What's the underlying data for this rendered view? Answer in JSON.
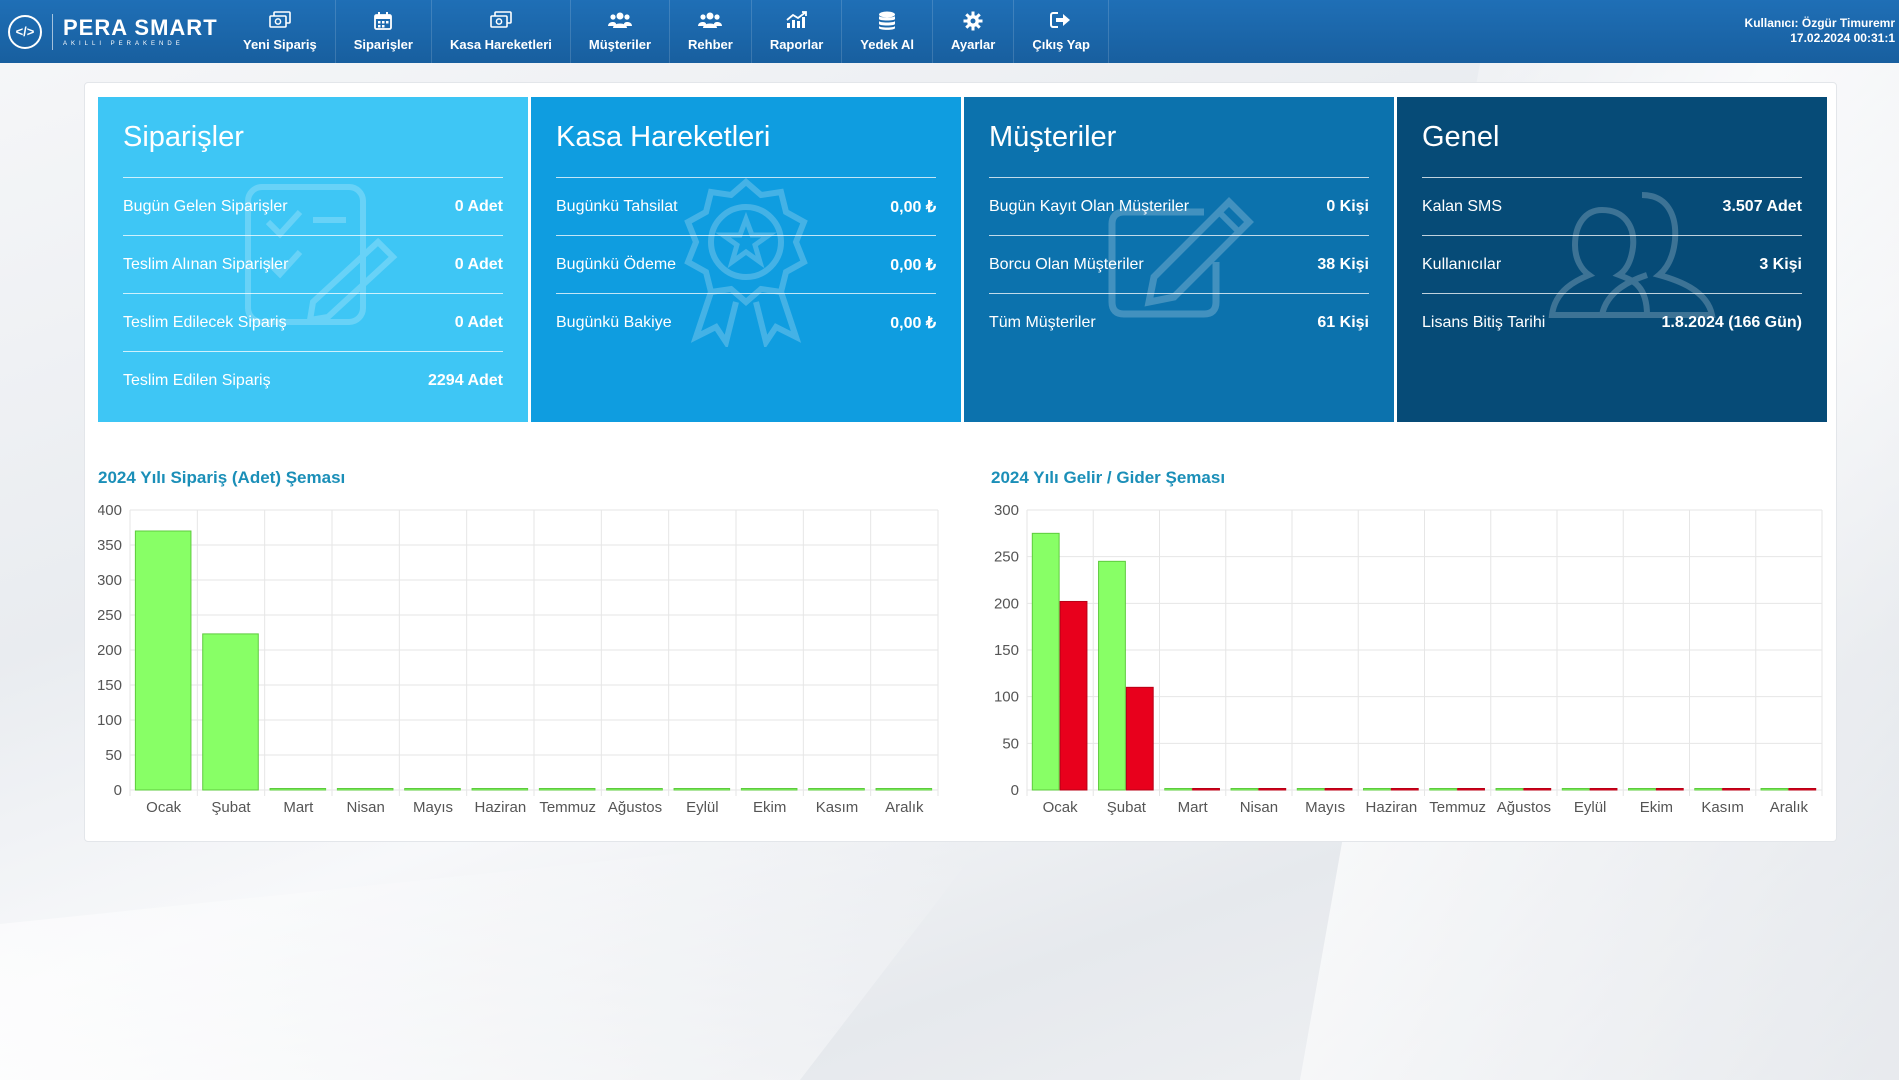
{
  "brand": {
    "logo": "</>",
    "name": "PERA SMART",
    "subtitle": "AKILLI PERAKENDE"
  },
  "nav": [
    {
      "label": "Yeni Sipariş",
      "icon": "money-icon"
    },
    {
      "label": "Siparişler",
      "icon": "calendar-icon"
    },
    {
      "label": "Kasa Hareketleri",
      "icon": "money-icon"
    },
    {
      "label": "Müşteriler",
      "icon": "users-icon"
    },
    {
      "label": "Rehber",
      "icon": "users-icon"
    },
    {
      "label": "Raporlar",
      "icon": "chart-icon"
    },
    {
      "label": "Yedek Al",
      "icon": "database-icon"
    },
    {
      "label": "Ayarlar",
      "icon": "gear-icon"
    },
    {
      "label": "Çıkış Yap",
      "icon": "sign-out-icon"
    }
  ],
  "user": {
    "line1": "Kullanıcı: Özgür Timuremr",
    "line2": "17.02.2024 00:31:1"
  },
  "cards": [
    {
      "title": "Siparişler",
      "color": "#3ec6f5",
      "icon": "checklist-icon",
      "rows": [
        {
          "label": "Bugün Gelen Siparişler",
          "value": "0 Adet"
        },
        {
          "label": "Teslim Alınan Siparişler",
          "value": "0 Adet"
        },
        {
          "label": "Teslim Edilecek Sipariş",
          "value": "0 Adet"
        },
        {
          "label": "Teslim Edilen Sipariş",
          "value": "2294 Adet"
        }
      ]
    },
    {
      "title": "Kasa Hareketleri",
      "color": "#0f9de0",
      "icon": "award-icon",
      "rows": [
        {
          "label": "Bugünkü Tahsilat",
          "value": "0,00 ₺"
        },
        {
          "label": "Bugünkü Ödeme",
          "value": "0,00 ₺"
        },
        {
          "label": "Bugünkü Bakiye",
          "value": "0,00 ₺"
        }
      ]
    },
    {
      "title": "Müşteriler",
      "color": "#0c72ad",
      "icon": "edit-icon",
      "rows": [
        {
          "label": "Bugün Kayıt Olan Müşteriler",
          "value": "0 Kişi"
        },
        {
          "label": "Borcu Olan Müşteriler",
          "value": "38 Kişi"
        },
        {
          "label": "Tüm Müşteriler",
          "value": "61 Kişi"
        }
      ]
    },
    {
      "title": "Genel",
      "color": "#064b77",
      "icon": "users-outline-icon",
      "rows": [
        {
          "label": "Kalan SMS",
          "value": "3.507 Adet"
        },
        {
          "label": "Kullanıcılar",
          "value": "3 Kişi"
        },
        {
          "label": "Lisans Bitiş Tarihi",
          "value": "1.8.2024 (166 Gün)"
        }
      ]
    }
  ],
  "chart_data": [
    {
      "type": "bar",
      "title": "2024 Yılı Sipariş (Adet) Şeması",
      "categories": [
        "Ocak",
        "Şubat",
        "Mart",
        "Nisan",
        "Mayıs",
        "Haziran",
        "Temmuz",
        "Ağustos",
        "Eylül",
        "Ekim",
        "Kasım",
        "Aralık"
      ],
      "series": [
        {
          "values": [
            370,
            223,
            0,
            0,
            0,
            0,
            0,
            0,
            0,
            0,
            0,
            0
          ],
          "color": "#88ff66",
          "stroke": "#5ecb3e"
        }
      ],
      "ylim": [
        0,
        400
      ],
      "yticks": [
        0,
        50,
        100,
        150,
        200,
        250,
        300,
        350,
        400
      ],
      "grid": true
    },
    {
      "type": "bar",
      "title": "2024 Yılı Gelir / Gider Şeması",
      "categories": [
        "Ocak",
        "Şubat",
        "Mart",
        "Nisan",
        "Mayıs",
        "Haziran",
        "Temmuz",
        "Ağustos",
        "Eylül",
        "Ekim",
        "Kasım",
        "Aralık"
      ],
      "series": [
        {
          "values": [
            275,
            245,
            0,
            0,
            0,
            0,
            0,
            0,
            0,
            0,
            0,
            0
          ],
          "color": "#88ff66",
          "stroke": "#5ecb3e"
        },
        {
          "values": [
            202,
            110,
            0,
            0,
            0,
            0,
            0,
            0,
            0,
            0,
            0,
            0
          ],
          "color": "#e8001c",
          "stroke": "#b80016"
        }
      ],
      "ylim": [
        0,
        300
      ],
      "yticks": [
        0,
        50,
        100,
        150,
        200,
        250,
        300
      ],
      "grid": true
    }
  ]
}
